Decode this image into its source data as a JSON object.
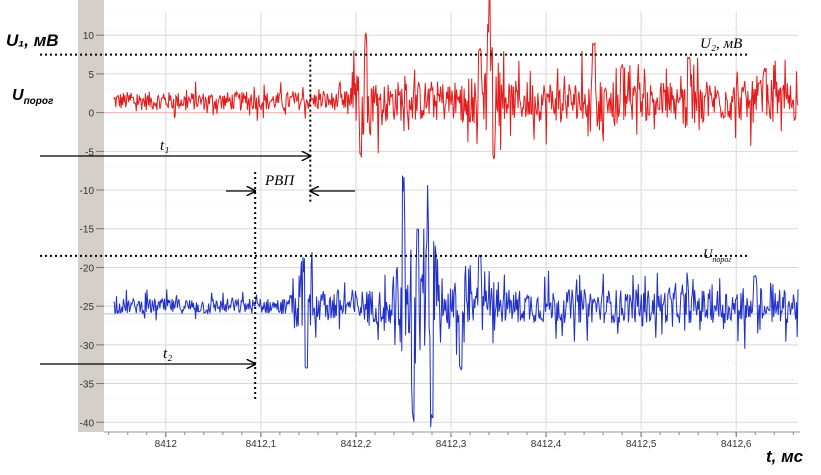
{
  "labels": {
    "y_axis": "U₁, мВ",
    "threshold_left": "Uпорог",
    "u2": "U₂, мВ",
    "threshold_right": "Uпорог",
    "t1": "t₁",
    "t2": "t₂",
    "rvp": "РВП",
    "x_axis": "t, мс"
  },
  "colors": {
    "red_series": "#e31b1b",
    "blue_series": "#1f2fc8",
    "axis_strip": "#d4d0c8",
    "grid": "#d8d8d8",
    "baseline": "#f4b4b4"
  },
  "chart_data": {
    "type": "line",
    "title": "",
    "xlabel": "t, мс",
    "ylabel": "U₁, мВ",
    "xlim": [
      8411.935,
      8412.665
    ],
    "ylim": [
      -41,
      13
    ],
    "grid": true,
    "y_ticks": [
      10,
      5,
      0,
      -5,
      -10,
      -15,
      -20,
      -25,
      -30,
      -35,
      -40
    ],
    "x_ticks": [
      {
        "value": 8412.0,
        "label": "8412"
      },
      {
        "value": 8412.1,
        "label": "8412,1"
      },
      {
        "value": 8412.2,
        "label": "8412,2"
      },
      {
        "value": 8412.3,
        "label": "8412,3"
      },
      {
        "value": 8412.4,
        "label": "8412,4"
      },
      {
        "value": 8412.5,
        "label": "8412,5"
      },
      {
        "value": 8412.6,
        "label": "8412,6"
      }
    ],
    "series": [
      {
        "color": "#e31b1b",
        "baseline": 1.5,
        "noise_amplitude": 1.2,
        "bursts": [
          {
            "x": 8412.21,
            "y": 8.5
          },
          {
            "x": 8412.205,
            "y": -5.5
          },
          {
            "x": 8412.34,
            "y": 12.5
          },
          {
            "x": 8412.345,
            "y": -6.5
          },
          {
            "x": 8412.33,
            "y": 8
          },
          {
            "x": 8412.45,
            "y": 9
          },
          {
            "x": 8412.48,
            "y": 6
          },
          {
            "x": 8412.55,
            "y": 7
          },
          {
            "x": 8412.63,
            "y": 5.5
          }
        ]
      },
      {
        "color": "#1f2fc8",
        "baseline": -25,
        "noise_amplitude": 1.0,
        "bursts": [
          {
            "x": 8412.145,
            "y": -17.5
          },
          {
            "x": 8412.148,
            "y": -33
          },
          {
            "x": 8412.25,
            "y": -11
          },
          {
            "x": 8412.26,
            "y": -37.5
          },
          {
            "x": 8412.275,
            "y": -14
          },
          {
            "x": 8412.28,
            "y": -39.5
          },
          {
            "x": 8412.265,
            "y": -15
          },
          {
            "x": 8412.31,
            "y": -33
          },
          {
            "x": 8412.33,
            "y": -18.5
          },
          {
            "x": 8412.62,
            "y": -21
          }
        ]
      }
    ],
    "thresholds": [
      7.5,
      -18.5
    ],
    "markers": {
      "t1": 8412.152,
      "t2": 8412.094
    }
  }
}
